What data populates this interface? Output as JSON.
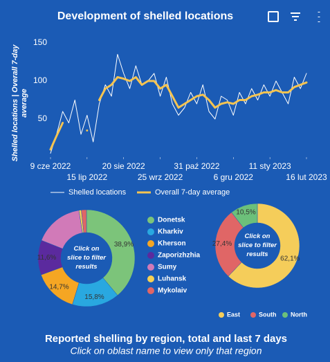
{
  "chart_data": [
    {
      "type": "line",
      "title": "Development of shelled locations",
      "ylabel": "Shelled locations | Overall 7-day average",
      "x": [
        "2022-06-09",
        "2022-06-15",
        "2022-06-21",
        "2022-06-27",
        "2022-07-03",
        "2022-07-09",
        "2022-07-15",
        "2022-07-21",
        "2022-07-27",
        "2022-08-02",
        "2022-08-08",
        "2022-08-14",
        "2022-08-20",
        "2022-08-26",
        "2022-09-01",
        "2022-09-07",
        "2022-09-13",
        "2022-09-19",
        "2022-09-25",
        "2022-10-01",
        "2022-10-07",
        "2022-10-13",
        "2022-10-19",
        "2022-10-25",
        "2022-10-31",
        "2022-11-06",
        "2022-11-12",
        "2022-11-18",
        "2022-11-24",
        "2022-11-30",
        "2022-12-06",
        "2022-12-12",
        "2022-12-18",
        "2022-12-24",
        "2022-12-30",
        "2023-01-05",
        "2023-01-11",
        "2023-01-17",
        "2023-01-23",
        "2023-01-29",
        "2023-02-04",
        "2023-02-10",
        "2023-02-16"
      ],
      "series": [
        {
          "name": "Shelled locations",
          "color": "#ffffff",
          "values": [
            5,
            30,
            60,
            45,
            75,
            30,
            55,
            20,
            70,
            95,
            80,
            135,
            110,
            90,
            120,
            95,
            100,
            110,
            80,
            105,
            70,
            55,
            65,
            85,
            70,
            95,
            60,
            50,
            80,
            75,
            55,
            85,
            70,
            90,
            75,
            95,
            80,
            100,
            85,
            70,
            105,
            90,
            110
          ]
        },
        {
          "name": "Overall 7-day average",
          "color": "#f5c451",
          "values": [
            10,
            28,
            45,
            null,
            null,
            null,
            35,
            null,
            75,
            90,
            95,
            105,
            103,
            100,
            105,
            95,
            100,
            100,
            90,
            95,
            80,
            65,
            70,
            75,
            80,
            82,
            75,
            65,
            70,
            72,
            70,
            75,
            75,
            80,
            82,
            85,
            85,
            88,
            85,
            85,
            92,
            95,
            98
          ]
        }
      ],
      "xlim": [
        "2022-06-09",
        "2023-02-16"
      ],
      "xticks": [
        {
          "value": "2022-06-09",
          "label": "9 cze 2022"
        },
        {
          "value": "2022-07-15",
          "label": "15 lip 2022"
        },
        {
          "value": "2022-08-20",
          "label": "20 sie 2022"
        },
        {
          "value": "2022-09-25",
          "label": "25 wrz 2022"
        },
        {
          "value": "2022-10-31",
          "label": "31 paź 2022"
        },
        {
          "value": "2022-12-06",
          "label": "6 gru 2022"
        },
        {
          "value": "2023-01-11",
          "label": "11 sty 2023"
        },
        {
          "value": "2023-02-16",
          "label": "16 lut 2023"
        }
      ],
      "ylim": [
        0,
        150
      ],
      "yticks": [
        50,
        100,
        150
      ]
    },
    {
      "type": "pie",
      "center_text": "Click on slice to filter results",
      "categories": [
        "Donetsk",
        "Kharkiv",
        "Kherson",
        "Zaporizhzhia",
        "Sumy",
        "Luhansk",
        "Mykolaiv"
      ],
      "values": [
        38.9,
        15.8,
        14.7,
        11.6,
        16.5,
        0.8,
        1.7
      ],
      "value_labels": [
        "38,9%",
        "15,8%",
        "14,7%",
        "11,6%",
        null,
        null,
        null
      ],
      "colors": [
        "#7cc47a",
        "#29a8e0",
        "#f5a623",
        "#5b2a9e",
        "#d17ab8",
        "#f7d154",
        "#e06666"
      ]
    },
    {
      "type": "pie",
      "center_text": "Click on slice to filter results",
      "categories": [
        "East",
        "South",
        "North"
      ],
      "values": [
        62.1,
        27.4,
        10.5
      ],
      "value_labels": [
        "62,1%",
        "27,4%",
        "10,5%"
      ],
      "colors": [
        "#f5cd5a",
        "#e06666",
        "#6cc07a"
      ]
    }
  ],
  "footer": {
    "title": "Reported shelling by region, total and last 7 days",
    "subtitle": "Click on oblast name to view only that region"
  }
}
